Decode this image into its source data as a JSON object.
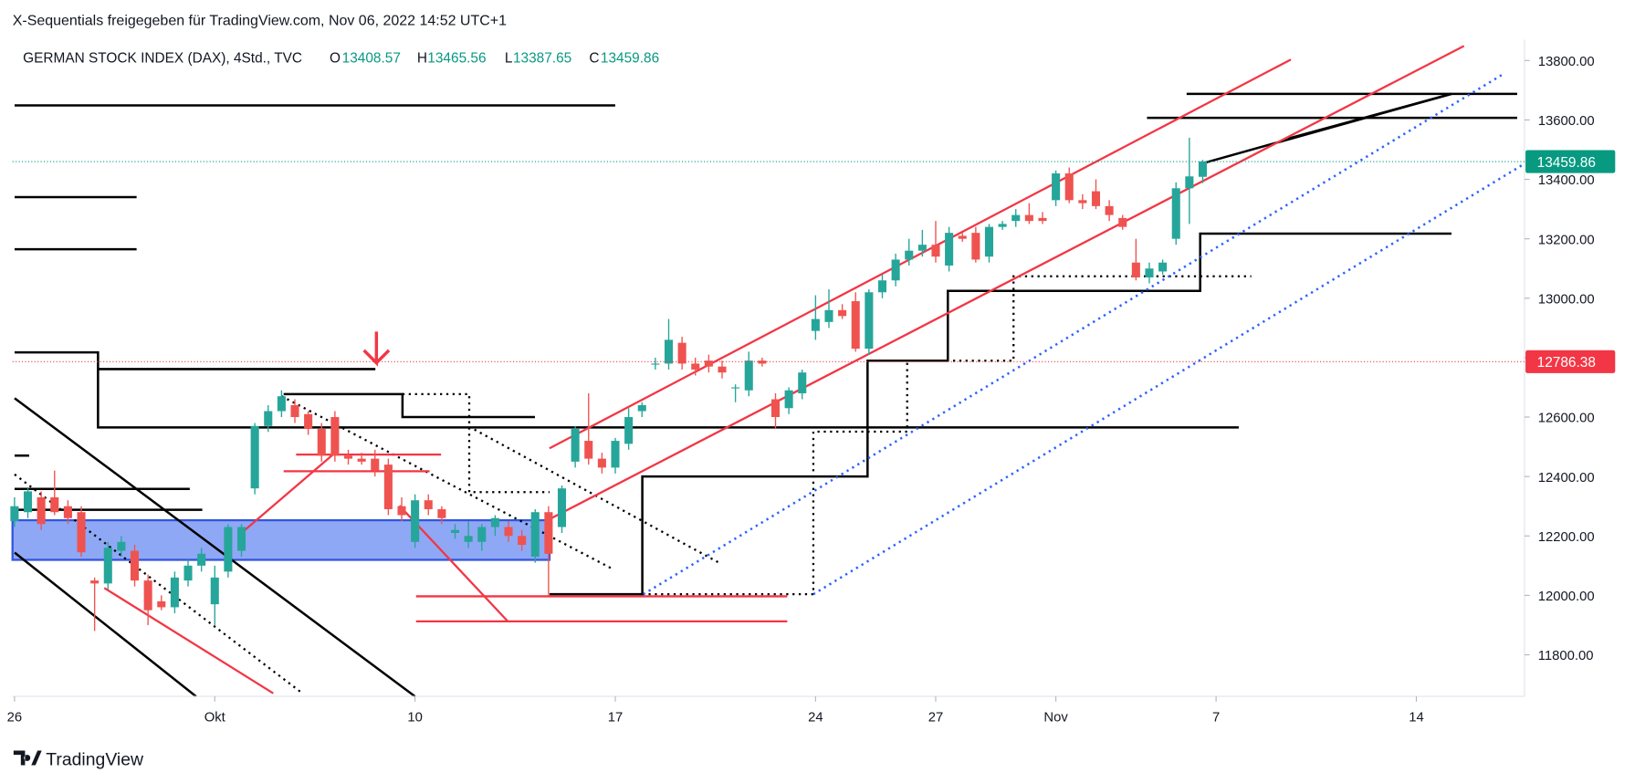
{
  "chart_data": {
    "type": "candlestick",
    "title": "X-Sequentials freigegeben für TradingView.com, Nov 06, 2022 14:52 UTC+1",
    "symbol": "GERMAN STOCK INDEX (DAX), 4Std., TVC",
    "ohlc_labels": [
      "O",
      "H",
      "L",
      "C"
    ],
    "brand": "TradingView",
    "up_color": "#26a69a",
    "down_color": "#ef5350",
    "x": [
      0,
      1,
      2,
      3,
      4,
      5,
      6,
      7,
      8,
      9,
      10,
      11,
      12,
      13,
      14,
      15,
      16,
      17,
      18,
      19,
      20,
      21,
      22,
      23,
      24,
      25,
      26,
      27,
      28,
      29,
      30,
      31,
      32,
      33,
      34,
      35,
      36,
      37,
      38,
      39,
      40,
      41,
      42,
      43,
      44,
      45,
      46,
      47,
      48,
      49,
      50,
      51,
      52,
      53,
      54,
      55,
      56,
      57,
      58,
      59,
      60,
      61,
      62,
      63,
      64,
      65,
      66,
      67,
      68,
      69,
      70,
      71,
      72,
      73,
      74,
      75,
      76,
      77,
      78,
      79,
      80,
      81,
      82,
      83,
      84,
      85,
      86,
      87,
      88,
      89
    ],
    "open": [
      12250,
      12280,
      12330,
      12330,
      12300,
      12280,
      12050,
      12040,
      12150,
      12150,
      12050,
      11980,
      11960,
      12050,
      12100,
      11970,
      12080,
      12150,
      12360,
      12570,
      12620,
      12640,
      12610,
      12560,
      12600,
      12470,
      12460,
      12460,
      12440,
      12300,
      12180,
      12320,
      12290,
      12210,
      12180,
      12180,
      12230,
      12230,
      12200,
      12130,
      12280,
      12230,
      12450,
      12520,
      12460,
      12430,
      12510,
      12620,
      12780,
      12780,
      12850,
      12780,
      12790,
      12770,
      12700,
      12690,
      12790,
      12660,
      12630,
      12680,
      12890,
      12920,
      12960,
      12990,
      12830,
      13020,
      13060,
      13130,
      13160,
      13180,
      13110,
      13210,
      13220,
      13140,
      13240,
      13260,
      13280,
      13270,
      13330,
      13420,
      13330,
      13360,
      13310,
      13270,
      13120,
      13070,
      13090,
      13200,
      13370,
      13408.57
    ],
    "high": [
      12330,
      12360,
      12350,
      12420,
      12320,
      12300,
      12060,
      12180,
      12200,
      12170,
      12070,
      12000,
      12080,
      12120,
      12160,
      12100,
      12240,
      12240,
      12580,
      12640,
      12690,
      12660,
      12620,
      12580,
      12620,
      12490,
      12480,
      12490,
      12460,
      12330,
      12340,
      12340,
      12300,
      12240,
      12250,
      12240,
      12270,
      12250,
      12220,
      12290,
      12300,
      12370,
      12570,
      12680,
      12480,
      12530,
      12630,
      12650,
      12800,
      12930,
      12870,
      12800,
      12810,
      12790,
      12710,
      12820,
      12800,
      12680,
      12700,
      12760,
      13010,
      13030,
      12980,
      13020,
      13030,
      13080,
      13150,
      13200,
      13230,
      13260,
      13240,
      13220,
      13240,
      13250,
      13260,
      13300,
      13320,
      13290,
      13430,
      13440,
      13350,
      13400,
      13330,
      13280,
      13200,
      13120,
      13130,
      13390,
      13540,
      13465.56
    ],
    "low": [
      12230,
      12260,
      12220,
      12270,
      12240,
      12130,
      11880,
      12020,
      12130,
      12030,
      11900,
      11950,
      11940,
      12030,
      12080,
      11900,
      12060,
      12130,
      12340,
      12550,
      12600,
      12580,
      12540,
      12450,
      12450,
      12440,
      12440,
      12400,
      12270,
      12250,
      12160,
      12270,
      12240,
      12190,
      12160,
      12150,
      12200,
      12180,
      12150,
      12110,
      12000,
      12210,
      12430,
      12440,
      12410,
      12410,
      12490,
      12600,
      12760,
      12760,
      12760,
      12740,
      12750,
      12730,
      12650,
      12670,
      12770,
      12560,
      12610,
      12660,
      12860,
      12900,
      12930,
      12820,
      12810,
      13000,
      13040,
      13110,
      13140,
      13120,
      13090,
      13190,
      13120,
      13120,
      13230,
      13240,
      13250,
      13250,
      13310,
      13320,
      13300,
      13300,
      13260,
      13230,
      13060,
      13050,
      13080,
      13180,
      13250,
      13387.65
    ],
    "close": [
      12300,
      12350,
      12240,
      12280,
      12260,
      12145,
      12040,
      12160,
      12180,
      12050,
      11950,
      11960,
      12060,
      12100,
      12140,
      12060,
      12230,
      12230,
      12570,
      12620,
      12670,
      12600,
      12560,
      12470,
      12470,
      12460,
      12450,
      12420,
      12290,
      12270,
      12320,
      12290,
      12260,
      12220,
      12200,
      12230,
      12260,
      12200,
      12170,
      12280,
      12140,
      12360,
      12560,
      12460,
      12430,
      12520,
      12600,
      12640,
      12780,
      12860,
      12780,
      12760,
      12770,
      12750,
      12700,
      12790,
      12780,
      12600,
      12690,
      12750,
      12930,
      12960,
      12940,
      12830,
      13020,
      13060,
      13130,
      13160,
      13180,
      13140,
      13220,
      13200,
      13130,
      13240,
      13250,
      13280,
      13260,
      13260,
      13420,
      13330,
      13320,
      13310,
      13280,
      13240,
      13070,
      13100,
      13120,
      13370,
      13410,
      13459.86
    ],
    "price_lines": [
      {
        "value": 12786.38,
        "color": "#f23645"
      }
    ],
    "last_price_color": "#089981",
    "xlim": [
      -0.15,
      113.1
    ],
    "ylim": [
      11660,
      13870
    ],
    "xticks": [
      {
        "value": 0,
        "label": "26"
      },
      {
        "value": 15,
        "label": "Okt"
      },
      {
        "value": 30,
        "label": "10"
      },
      {
        "value": 45,
        "label": "17"
      },
      {
        "value": 60,
        "label": "24"
      },
      {
        "value": 69,
        "label": "27"
      },
      {
        "value": 78,
        "label": "Nov"
      },
      {
        "value": 90,
        "label": "7"
      },
      {
        "value": 105,
        "label": "14"
      }
    ],
    "yticks": [
      {
        "value": 11800,
        "label": "11800.00"
      },
      {
        "value": 12000,
        "label": "12000.00"
      },
      {
        "value": 12200,
        "label": "12200.00"
      },
      {
        "value": 12400,
        "label": "12400.00"
      },
      {
        "value": 12600,
        "label": "12600.00"
      },
      {
        "value": 12800,
        "label": "12800.00"
      },
      {
        "value": 13000,
        "label": "13000.00"
      },
      {
        "value": 13200,
        "label": "13200.00"
      },
      {
        "value": 13400,
        "label": "13400.00"
      },
      {
        "value": 13600,
        "label": "13600.00"
      },
      {
        "value": 13800,
        "label": "13800.00"
      }
    ]
  }
}
